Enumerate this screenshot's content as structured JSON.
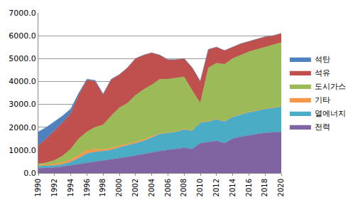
{
  "chart_data": {
    "type": "area",
    "stacked": true,
    "grid": true,
    "legend": "right",
    "x": [
      1990,
      1991,
      1992,
      1993,
      1994,
      1995,
      1996,
      1997,
      1998,
      1999,
      2000,
      2001,
      2002,
      2003,
      2004,
      2005,
      2006,
      2007,
      2008,
      2009,
      2010,
      2011,
      2012,
      2013,
      2014,
      2015,
      2016,
      2017,
      2018,
      2019,
      2020
    ],
    "xlim": [
      1990,
      2020
    ],
    "xticks": [
      1990,
      1992,
      1994,
      1996,
      1998,
      2000,
      2002,
      2004,
      2006,
      2008,
      2010,
      2012,
      2014,
      2016,
      2018,
      2020
    ],
    "ylim": [
      0,
      7000
    ],
    "yticks": [
      {
        "value": 0,
        "label": "0.0"
      },
      {
        "value": 1000,
        "label": "1000.0"
      },
      {
        "value": 2000,
        "label": "2000.0"
      },
      {
        "value": 3000,
        "label": "3000.0"
      },
      {
        "value": 4000,
        "label": "4000.0"
      },
      {
        "value": 5000,
        "label": "5000.0"
      },
      {
        "value": 6000,
        "label": "6000.0"
      },
      {
        "value": 7000,
        "label": "7000.0"
      }
    ],
    "series": [
      {
        "name": "전력",
        "color": "#8064a2",
        "values": [
          200,
          210,
          240,
          280,
          330,
          400,
          450,
          500,
          540,
          580,
          640,
          700,
          760,
          830,
          900,
          960,
          1000,
          1050,
          1100,
          1050,
          1300,
          1350,
          1400,
          1300,
          1500,
          1580,
          1650,
          1700,
          1750,
          1780,
          1800
        ]
      },
      {
        "name": "열에너지",
        "color": "#4bacc6",
        "values": [
          100,
          100,
          90,
          100,
          150,
          250,
          400,
          420,
          410,
          420,
          480,
          500,
          540,
          570,
          650,
          740,
          750,
          750,
          800,
          800,
          900,
          900,
          950,
          950,
          950,
          970,
          1000,
          1020,
          1050,
          1070,
          1100
        ]
      },
      {
        "name": "기타",
        "color": "#f79646",
        "values": [
          50,
          50,
          60,
          80,
          100,
          130,
          150,
          120,
          80,
          80,
          70,
          60,
          60,
          60,
          50,
          20,
          10,
          10,
          10,
          10,
          10,
          10,
          10,
          10,
          10,
          10,
          10,
          10,
          10,
          10,
          10
        ]
      },
      {
        "name": "도시가스",
        "color": "#9bbb59",
        "values": [
          50,
          90,
          160,
          290,
          470,
          720,
          800,
          960,
          1070,
          1420,
          1660,
          1790,
          2040,
          2190,
          2250,
          2380,
          2340,
          2340,
          2290,
          1740,
          840,
          2340,
          2440,
          2490,
          2540,
          2590,
          2640,
          2670,
          2690,
          2740,
          2790
        ]
      },
      {
        "name": "석유",
        "color": "#c0504d",
        "values": [
          800,
          1050,
          1300,
          1450,
          1550,
          1900,
          2250,
          2010,
          1320,
          1580,
          1440,
          1540,
          1600,
          1500,
          1400,
          1050,
          850,
          800,
          800,
          1000,
          950,
          800,
          700,
          600,
          500,
          500,
          450,
          450,
          450,
          400,
          400
        ]
      },
      {
        "name": "석탄",
        "color": "#4f81bd",
        "values": [
          600,
          500,
          400,
          300,
          200,
          100,
          50,
          40,
          30,
          20,
          10,
          10,
          0,
          0,
          0,
          0,
          0,
          0,
          0,
          0,
          0,
          0,
          0,
          0,
          0,
          0,
          0,
          0,
          0,
          0,
          0
        ]
      }
    ]
  }
}
